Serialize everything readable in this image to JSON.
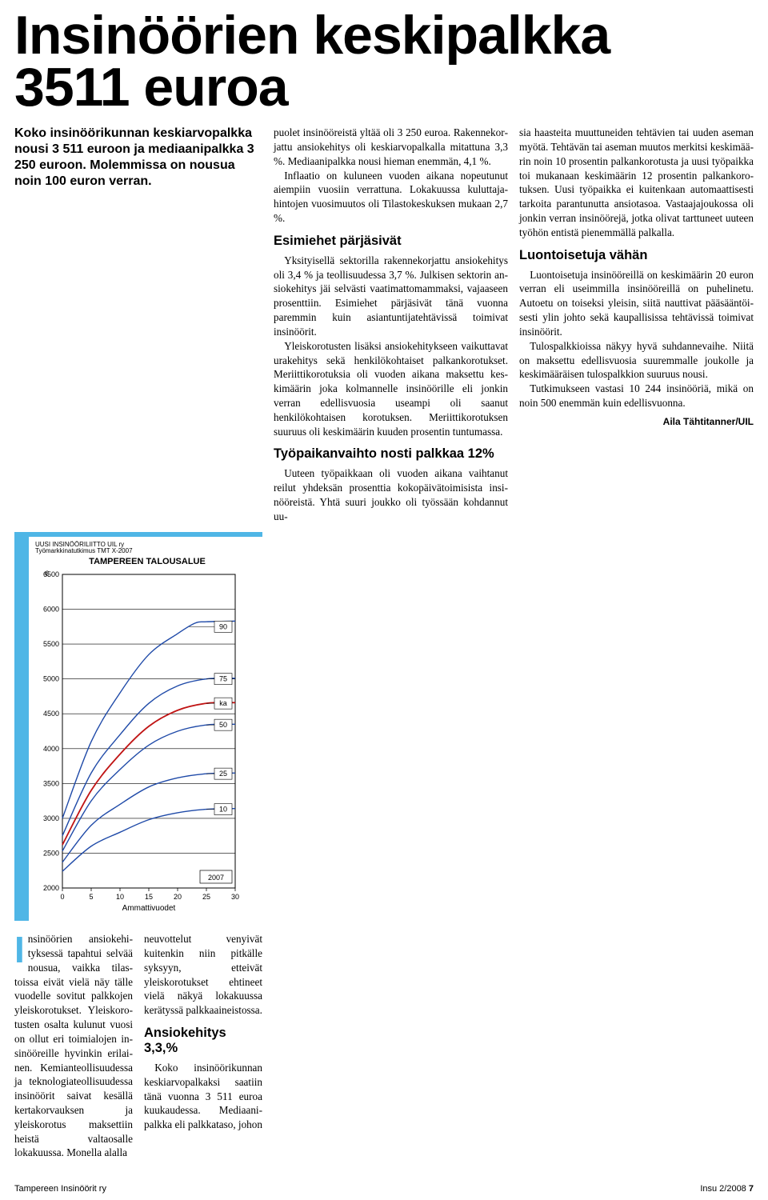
{
  "headline_l1": "Insinöörien keskipalkka",
  "headline_l2": "3511 euroa",
  "lead": "Koko insinöörikunnan keskiarvopalkka nousi 3 511 euroon ja mediaanipalkka 3 250 euroon. Molemmissa on nousua noin 100 euron verran.",
  "chart": {
    "source1": "UUSI INSINÖÖRILIITTO UIL ry",
    "source2": "Työmarkkinatutkimus TMT X-2007",
    "title": "TAMPEREEN TALOUSALUE",
    "y_unit": "€",
    "x_title": "Ammattivuodet",
    "year_box": "2007",
    "y_min": 2000,
    "y_max": 6500,
    "y_step": 500,
    "x_min": 0,
    "x_max": 30,
    "x_step": 5,
    "line_labels": [
      "90",
      "75",
      "ka",
      "50",
      "25",
      "10"
    ],
    "line_colors": [
      "#1f4aa8",
      "#1f4aa8",
      "#c01414",
      "#1f4aa8",
      "#1f4aa8",
      "#1f4aa8"
    ],
    "plot_bg": "#ffffff",
    "grid_color": "#000000",
    "accent_border": "#4fb6e6",
    "series": {
      "p90": [
        [
          0,
          3000
        ],
        [
          5,
          4100
        ],
        [
          10,
          4800
        ],
        [
          15,
          5350
        ],
        [
          20,
          5650
        ],
        [
          23,
          5800
        ],
        [
          25,
          5820
        ],
        [
          30,
          5830
        ]
      ],
      "p75": [
        [
          0,
          2750
        ],
        [
          5,
          3650
        ],
        [
          10,
          4200
        ],
        [
          15,
          4650
        ],
        [
          20,
          4900
        ],
        [
          25,
          5000
        ],
        [
          30,
          5010
        ]
      ],
      "ka": [
        [
          0,
          2620
        ],
        [
          5,
          3400
        ],
        [
          10,
          3920
        ],
        [
          15,
          4320
        ],
        [
          20,
          4550
        ],
        [
          25,
          4650
        ],
        [
          30,
          4660
        ]
      ],
      "p50": [
        [
          0,
          2530
        ],
        [
          5,
          3250
        ],
        [
          10,
          3700
        ],
        [
          15,
          4050
        ],
        [
          20,
          4250
        ],
        [
          25,
          4340
        ],
        [
          30,
          4350
        ]
      ],
      "p25": [
        [
          0,
          2370
        ],
        [
          5,
          2900
        ],
        [
          10,
          3200
        ],
        [
          15,
          3450
        ],
        [
          20,
          3580
        ],
        [
          25,
          3640
        ],
        [
          30,
          3650
        ]
      ],
      "p10": [
        [
          0,
          2240
        ],
        [
          5,
          2600
        ],
        [
          10,
          2800
        ],
        [
          15,
          2980
        ],
        [
          20,
          3080
        ],
        [
          25,
          3130
        ],
        [
          30,
          3140
        ]
      ]
    }
  },
  "col_a_p1": "puolet insinööreistä yltää oli 3 250 euroa. Rakennekor­jattu ansiokehitys oli keski­arvopalkalla mitattuna 3,3 %. Mediaanipalkka nousi hieman enemmän, 4,1 %.",
  "col_a_p2": "Inflaatio on kuluneen vuoden aikana nopeutunut aiempiin vuosiin verrattu­na. Lokakuussa kuluttaja­hintojen vuosimuutos oli Tilastokeskuksen mukaan 2,7 %.",
  "sub1": "Esimiehet pärjäsivät",
  "col_a_p3": "Yksityisellä sektorilla ra­kennekorjattu ansiokehitys oli 3,4 % ja teollisuudessa 3,7 %. Julkisen sektorin an­siokehitys jäi selvästi vaati­mattomammaksi, vajaaseen prosenttiin. Esimiehet pärjä­sivät tänä vuonna paremmin kuin asiantuntijatehtävissä toimivat insinöörit.",
  "col_a_p4": "Yleiskorotusten lisäksi ansiokehitykseen vaikutta­vat urakehitys sekä henkilö­kohtaiset palkankorotukset. Meriittikorotuksia oli vuo­den aikana maksettu kes­kimäärin joka kolmannelle insinöörille eli jonkin verran edellisvuosia useampi oli saanut henkilökohtaisen korotuksen. Meriittikoro­tuksen suuruus oli keski­määrin kuuden prosentin tuntumassa.",
  "sub2": "Työpaikanvaihto nosti palkkaa 12%",
  "col_a_p5": "Uuteen työpaikkaan oli vuoden aikana vaihtanut reilut yhdeksän prosenttia kokopäivätoimisista insi­nööreistä. Yhtä suuri joukko oli työssään kohdannut uu-",
  "col_b_p1": "sia haasteita muuttuneiden tehtävien tai uuden aseman myötä. Tehtävän tai aseman muutos merkitsi keskimää­rin noin 10 prosentin palkan­korotusta ja uusi työpaikka toi mukanaan keskimäärin 12 prosentin palkankoro­tuksen. Uusi työpaikka ei kuitenkaan automaattisesti tarkoita parantunutta ansio­tasoa. Vastaajajoukossa oli jonkin verran insinöörejä, jotka olivat tarttuneet uuteen työhön entistä pienemmällä palkalla.",
  "sub3": "Luontoisetuja vähän",
  "col_b_p2": "Luontoisetuja insinööreil­lä on keskimäärin 20 euron verran eli useimmilla in­sinööreillä on puhelinetu. Autoetu on toiseksi yleisin, siitä nauttivat pääsääntöi­sesti ylin johto sekä kaupal­lisissa tehtävissä toimivat insinöörit.",
  "col_b_p3": "Tulospalkkioissa näkyy hyvä suhdannevaihe. Niitä on maksettu edellisvuosia suuremmalle joukolle ja keskimääräisen tulospalk­kion suuruus nousi.",
  "col_b_p4": "Tutkimukseen vastasi 10 244 insinööriä, mikä on noin 500 enemmän kuin edellis­vuonna.",
  "byline": "Aila Tähtitanner/UIL",
  "under_a": "nsinöörien ansiokehi­tyksessä tapahtui selvää nousua, vaikka tilas­toissa eivät vielä näy tälle vuodelle sovitut palkkojen yleiskorotukset. Yleiskoro­tusten osalta kulunut vuosi on ollut eri toimialojen in­sinööreille hyvinkin erilai­nen. Kemianteollisuudessa ja teknologiateollisuudessa insinöörit saivat kesällä ker­takorvauksen ja yleiskorotus maksettiin heistä valtaosalle lokakuussa. Monella alalla",
  "under_b1": "neuvottelut venyivät kuiten­kin niin pitkälle syksyyn, etteivät yleiskorotukset ehtineet vielä näkyä loka­kuussa kerätyssä palkka­aineistossa.",
  "sub4": "Ansiokehitys 3,3,%",
  "under_b2": "Koko insinöörikunnan keskiarvopalkaksi saatiin tänä vuonna 3 511 euroa kuukaudessa. Mediaani­palkka eli palkkataso, johon",
  "footer_left": "Tampereen Insinöörit ry",
  "footer_right_a": "Insu 2/2008",
  "footer_right_b": "7"
}
